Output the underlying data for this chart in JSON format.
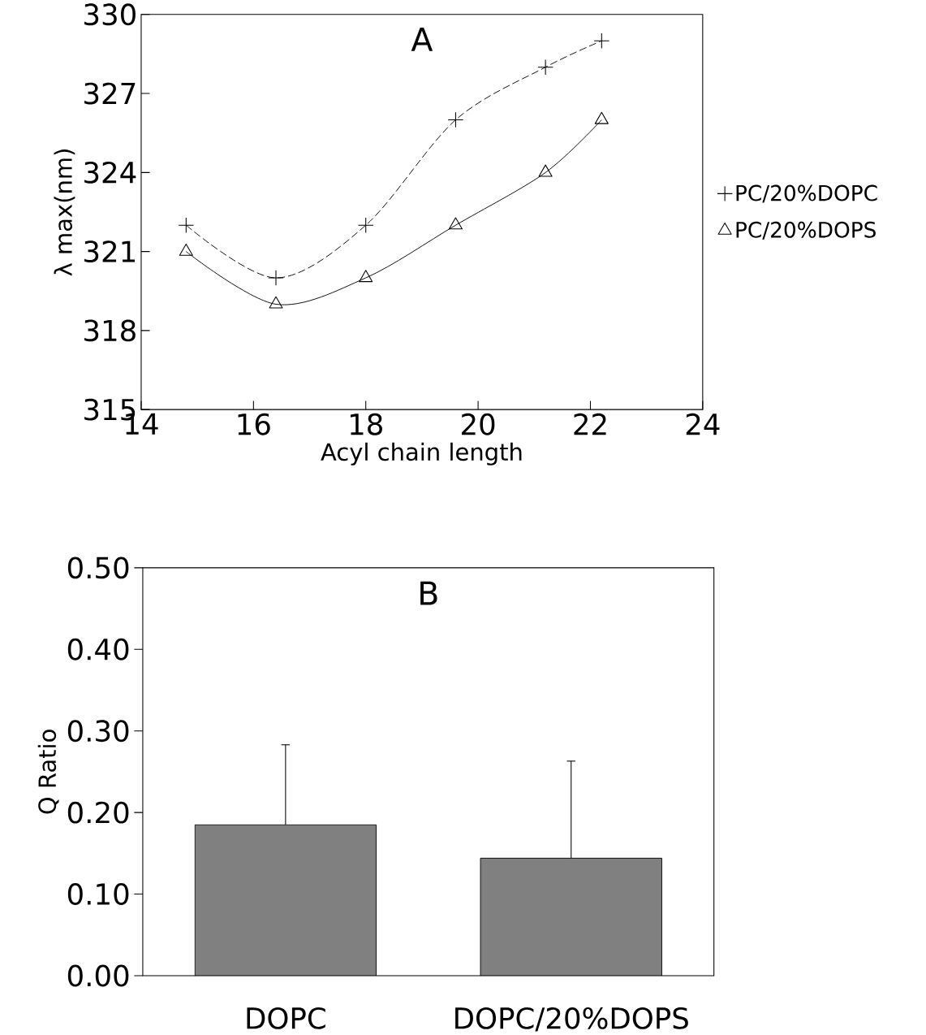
{
  "chart_data": [
    {
      "type": "line",
      "title": "A",
      "xlabel": "Acyl chain length",
      "ylabel": "λ max(nm)",
      "x": [
        14.8,
        16.4,
        18,
        19.6,
        21.2,
        22.2
      ],
      "xlim": [
        14,
        24
      ],
      "xticks": [
        14,
        16,
        18,
        20,
        22,
        24
      ],
      "ylim": [
        315,
        330
      ],
      "yticks": [
        315,
        318,
        321,
        324,
        327,
        330
      ],
      "legend": "right",
      "series": [
        {
          "name": "PC/20%DOPC",
          "color": "#000000",
          "values": [
            322,
            320,
            322,
            326,
            328,
            329
          ],
          "marker": "cross",
          "line_style": "dashed"
        },
        {
          "name": "PC/20%DOPS",
          "color": "#000000",
          "values": [
            321,
            319,
            320,
            322,
            324,
            326
          ],
          "marker": "triangle",
          "line_style": "solid"
        }
      ]
    },
    {
      "type": "bar",
      "title": "B",
      "ylabel": "Q Ratio",
      "categories": [
        "DOPC",
        "DOPC/20%DOPS"
      ],
      "values": [
        0.185,
        0.144
      ],
      "color": "#808080",
      "errors": [
        [
          0.185,
          0.283
        ],
        [
          0.144,
          0.263
        ]
      ],
      "ylim": [
        0,
        0.5
      ],
      "yticks": [
        {
          "value": 0,
          "label": "0.00"
        },
        {
          "value": 0.1,
          "label": "0.10"
        },
        {
          "value": 0.2,
          "label": "0.20"
        },
        {
          "value": 0.3,
          "label": "0.30"
        },
        {
          "value": 0.4,
          "label": "0.40"
        },
        {
          "value": 0.5,
          "label": "0.50"
        }
      ]
    }
  ]
}
